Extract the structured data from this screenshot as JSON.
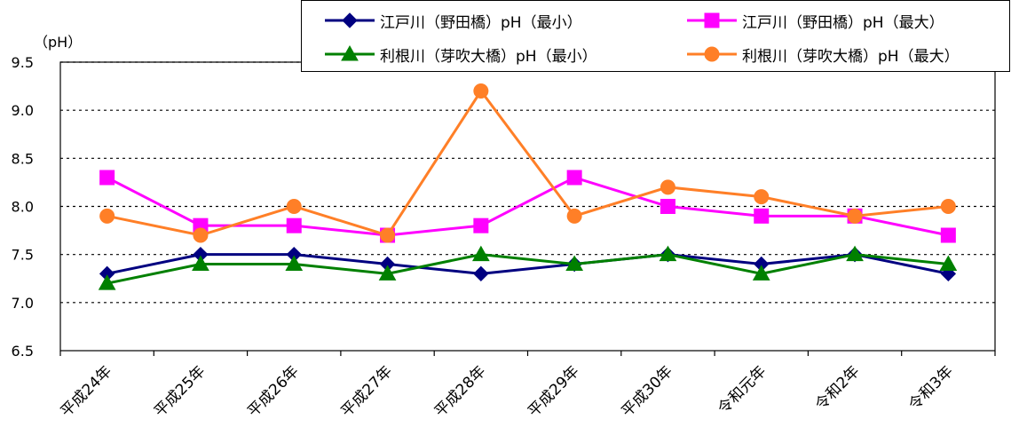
{
  "chart_data": {
    "type": "line",
    "unit_label": "（pH）",
    "categories": [
      "平成24年",
      "平成25年",
      "平成26年",
      "平成27年",
      "平成28年",
      "平成29年",
      "平成30年",
      "令和元年",
      "令和2年",
      "令和3年"
    ],
    "ylim": [
      6.5,
      9.5
    ],
    "yticks": [
      "6.5",
      "7.0",
      "7.5",
      "8.0",
      "8.5",
      "9.0",
      "9.5"
    ],
    "grid": "horizontal dotted",
    "legend_position": "top-right",
    "series": [
      {
        "name": "江戸川（野田橋）pH（最小）",
        "color": "#000080",
        "marker": "diamond",
        "values": [
          7.3,
          7.5,
          7.5,
          7.4,
          7.3,
          7.4,
          7.5,
          7.4,
          7.5,
          7.3
        ]
      },
      {
        "name": "江戸川（野田橋）pH（最大）",
        "color": "#ff00ff",
        "marker": "square",
        "values": [
          8.3,
          7.8,
          7.8,
          7.7,
          7.8,
          8.3,
          8.0,
          7.9,
          7.9,
          7.7
        ]
      },
      {
        "name": "利根川（芽吹大橋）pH（最小）",
        "color": "#008000",
        "marker": "triangle",
        "values": [
          7.2,
          7.4,
          7.4,
          7.3,
          7.5,
          7.4,
          7.5,
          7.3,
          7.5,
          7.4
        ]
      },
      {
        "name": "利根川（芽吹大橋）pH（最大）",
        "color": "#ff7f27",
        "marker": "circle",
        "values": [
          7.9,
          7.7,
          8.0,
          7.7,
          9.2,
          7.9,
          8.2,
          8.1,
          7.9,
          8.0
        ]
      }
    ]
  }
}
